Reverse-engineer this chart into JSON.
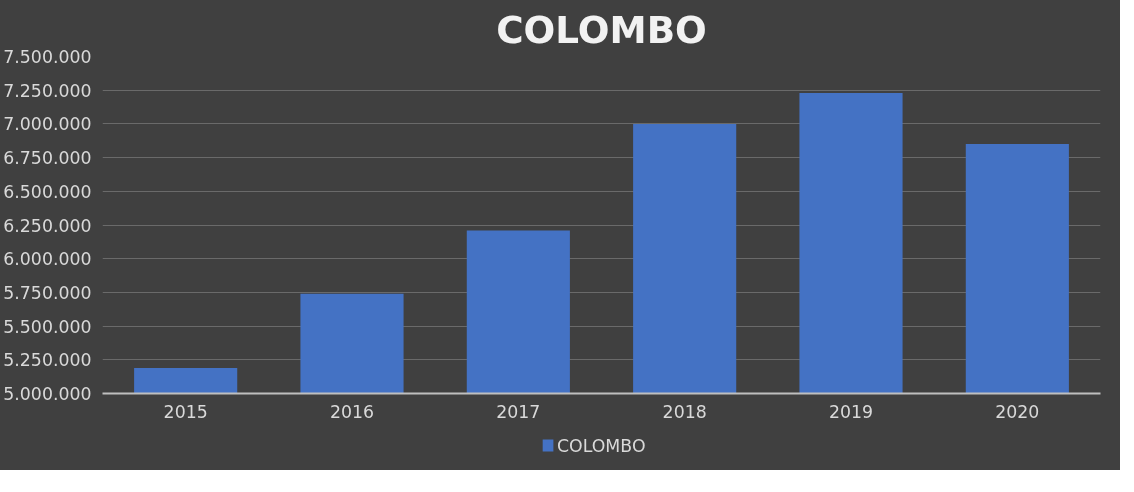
{
  "chart_data": {
    "type": "bar",
    "title": "COLOMBO",
    "categories": [
      "2015",
      "2016",
      "2017",
      "2018",
      "2019",
      "2020"
    ],
    "series": [
      {
        "name": "COLOMBO",
        "color": "#4472c4",
        "values": [
          5190000,
          5740000,
          6210000,
          7000000,
          7230000,
          6850000
        ]
      }
    ],
    "ylim": [
      5000000,
      7500000
    ],
    "yticks": [
      {
        "value": 5000000,
        "label": "5.000.000"
      },
      {
        "value": 5250000,
        "label": "5.250.000"
      },
      {
        "value": 5500000,
        "label": "5.500.000"
      },
      {
        "value": 5750000,
        "label": "5.750.000"
      },
      {
        "value": 6000000,
        "label": "6.000.000"
      },
      {
        "value": 6250000,
        "label": "6.250.000"
      },
      {
        "value": 6500000,
        "label": "6.500.000"
      },
      {
        "value": 6750000,
        "label": "6.750.000"
      },
      {
        "value": 7000000,
        "label": "7.000.000"
      },
      {
        "value": 7250000,
        "label": "7.250.000"
      },
      {
        "value": 7500000,
        "label": "7.500.000"
      }
    ],
    "grid": "y",
    "legend": "bottom"
  }
}
